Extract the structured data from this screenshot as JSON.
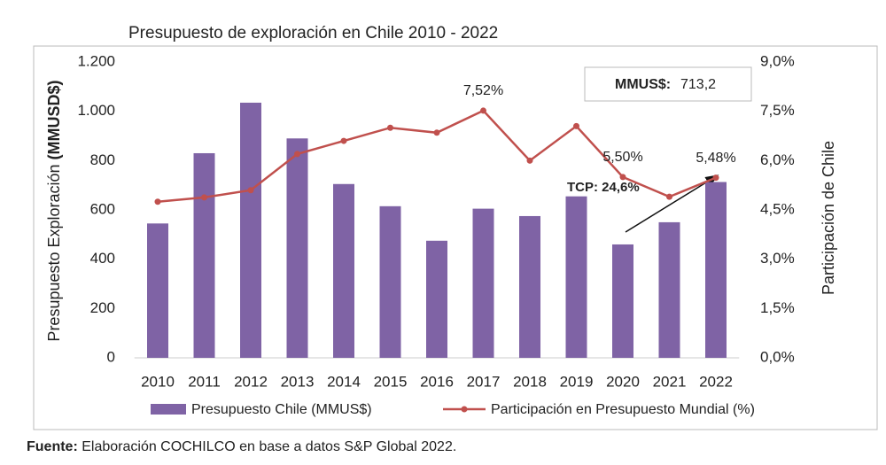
{
  "chart_data": {
    "type": "bar",
    "title": "Presupuesto de exploración en Chile 2010 - 2022",
    "ylabel": "Presupuesto Exploración",
    "ylabel_unit": "(MMUSD$)",
    "y2label": "Participación de Chile",
    "categories": [
      "2010",
      "2011",
      "2012",
      "2013",
      "2014",
      "2015",
      "2016",
      "2017",
      "2018",
      "2019",
      "2020",
      "2021",
      "2022"
    ],
    "series": [
      {
        "name": "Presupuesto Chile (MMUS$)",
        "type": "bar",
        "color": "#7f63a5",
        "values": [
          545,
          830,
          1035,
          890,
          705,
          615,
          475,
          605,
          575,
          655,
          460,
          550,
          713.2
        ],
        "value_labels": [
          null,
          null,
          null,
          null,
          null,
          null,
          null,
          null,
          null,
          null,
          null,
          null,
          "713,2"
        ]
      },
      {
        "name": "Participación en Presupuesto Mundial (%)",
        "type": "line",
        "axis": "y2",
        "color": "#c0504d",
        "values": [
          4.75,
          4.88,
          5.1,
          6.2,
          6.6,
          7.0,
          6.85,
          7.52,
          6.0,
          7.05,
          5.5,
          4.9,
          5.48
        ],
        "value_labels": [
          null,
          null,
          null,
          null,
          null,
          null,
          null,
          "7,52%",
          null,
          null,
          "5,50%",
          null,
          "5,48%"
        ]
      }
    ],
    "ylim": [
      0,
      1200
    ],
    "yticks": [
      0,
      200,
      400,
      600,
      800,
      {
        "value": 1000,
        "label": "1.000"
      },
      {
        "value": 1200,
        "label": "1.200"
      }
    ],
    "y2lim": [
      0,
      9
    ],
    "y2ticks": [
      {
        "value": 0,
        "label": "0,0%"
      },
      {
        "value": 1.5,
        "label": "1,5%"
      },
      {
        "value": 3,
        "label": "3,0%"
      },
      {
        "value": 4.5,
        "label": "4,5%"
      },
      {
        "value": 6,
        "label": "6,0%"
      },
      {
        "value": 7.5,
        "label": "7,5%"
      },
      {
        "value": 9,
        "label": "9,0%"
      }
    ],
    "annotations": {
      "box_label": "MMUS$:",
      "growth": "TCP: 24,6%"
    },
    "source": {
      "label": "Fuente:",
      "text": "Elaboración COCHILCO en base a datos S&P Global 2022."
    }
  }
}
